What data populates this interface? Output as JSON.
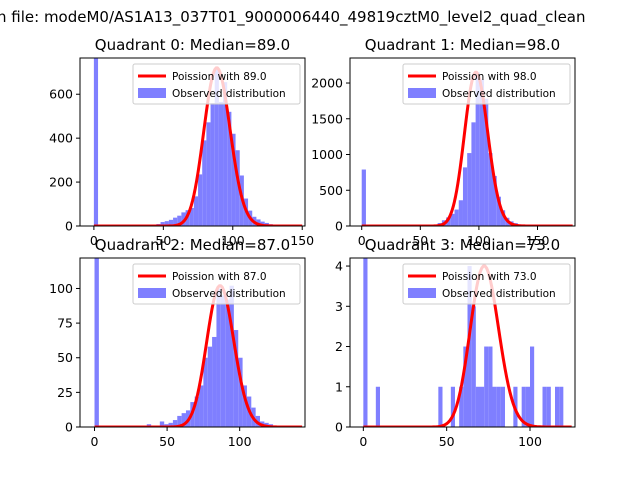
{
  "suptitle": "n file: modeM0/AS1A13_037T01_9000006440_49819cztM0_level2_quad_clean",
  "colors": {
    "bars": "#7f7fff",
    "curve": "#ff0000",
    "curve_halo": "#ff8080"
  },
  "chart_data": [
    {
      "type": "bar",
      "title": "Quadrant 0: Median=89.0",
      "median": 89.0,
      "legend": [
        "Poission with 89.0",
        "Observed distribution"
      ],
      "legend_placement": "top-right",
      "xlim": [
        -10,
        152
      ],
      "ylim": [
        0,
        765
      ],
      "xticks": [
        0,
        50,
        100,
        150
      ],
      "yticks": [
        0,
        200,
        400,
        600
      ],
      "bin_width": 3,
      "bins": [
        [
          0,
          768
        ],
        [
          39,
          3
        ],
        [
          42,
          5
        ],
        [
          45,
          9
        ],
        [
          48,
          18
        ],
        [
          51,
          22
        ],
        [
          54,
          28
        ],
        [
          57,
          38
        ],
        [
          60,
          47
        ],
        [
          63,
          62
        ],
        [
          66,
          72
        ],
        [
          69,
          82
        ],
        [
          72,
          135
        ],
        [
          75,
          235
        ],
        [
          78,
          390
        ],
        [
          81,
          472
        ],
        [
          84,
          560
        ],
        [
          87,
          720
        ],
        [
          90,
          565
        ],
        [
          93,
          655
        ],
        [
          96,
          520
        ],
        [
          99,
          420
        ],
        [
          102,
          345
        ],
        [
          105,
          230
        ],
        [
          108,
          125
        ],
        [
          111,
          70
        ],
        [
          114,
          42
        ],
        [
          117,
          30
        ],
        [
          120,
          20
        ],
        [
          123,
          14
        ],
        [
          126,
          8
        ],
        [
          129,
          5
        ],
        [
          132,
          3
        ],
        [
          135,
          2
        ],
        [
          138,
          1
        ]
      ]
    },
    {
      "type": "bar",
      "title": "Quadrant 1: Median=98.0",
      "median": 98.0,
      "legend": [
        "Poission with 98.0",
        "Observed distribution"
      ],
      "legend_placement": "top-right",
      "xlim": [
        -10,
        182
      ],
      "ylim": [
        0,
        2350
      ],
      "xticks": [
        0,
        50,
        100,
        150
      ],
      "yticks": [
        0,
        500,
        1000,
        1500,
        2000
      ],
      "bin_width": 3.6,
      "bins": [
        [
          0,
          790
        ],
        [
          54,
          5
        ],
        [
          57.6,
          10
        ],
        [
          61.2,
          18
        ],
        [
          64.8,
          42
        ],
        [
          68.4,
          80
        ],
        [
          72,
          120
        ],
        [
          75.6,
          170
        ],
        [
          79.2,
          230
        ],
        [
          82.8,
          360
        ],
        [
          86.4,
          820
        ],
        [
          90,
          1020
        ],
        [
          93.6,
          1450
        ],
        [
          97.2,
          2150
        ],
        [
          100.8,
          2050
        ],
        [
          104.4,
          1780
        ],
        [
          108,
          1020
        ],
        [
          111.6,
          700
        ],
        [
          115.2,
          410
        ],
        [
          118.8,
          220
        ],
        [
          122.4,
          115
        ],
        [
          126,
          65
        ],
        [
          129.6,
          40
        ],
        [
          133.2,
          22
        ],
        [
          136.8,
          12
        ],
        [
          140.4,
          6
        ],
        [
          144,
          3
        ]
      ]
    },
    {
      "type": "bar",
      "title": "Quadrant 2: Median=87.0",
      "median": 87.0,
      "legend": [
        "Poission with 87.0",
        "Observed distribution"
      ],
      "legend_placement": "top-right",
      "xlim": [
        -10,
        145
      ],
      "ylim": [
        0,
        122
      ],
      "xticks": [
        0,
        50,
        100
      ],
      "yticks": [
        0,
        25,
        50,
        75,
        100
      ],
      "bin_width": 3,
      "bins": [
        [
          0,
          122
        ],
        [
          18,
          1
        ],
        [
          24,
          1
        ],
        [
          30,
          1
        ],
        [
          36,
          2
        ],
        [
          39,
          1
        ],
        [
          45,
          4
        ],
        [
          48,
          2
        ],
        [
          51,
          3
        ],
        [
          54,
          5
        ],
        [
          57,
          8
        ],
        [
          60,
          10
        ],
        [
          63,
          12
        ],
        [
          66,
          18
        ],
        [
          69,
          22
        ],
        [
          72,
          30
        ],
        [
          75,
          50
        ],
        [
          78,
          58
        ],
        [
          81,
          65
        ],
        [
          84,
          100
        ],
        [
          87,
          95
        ],
        [
          90,
          92
        ],
        [
          93,
          102
        ],
        [
          96,
          70
        ],
        [
          99,
          50
        ],
        [
          102,
          30
        ],
        [
          105,
          22
        ],
        [
          108,
          14
        ],
        [
          111,
          8
        ],
        [
          114,
          4
        ],
        [
          117,
          3
        ],
        [
          120,
          2
        ],
        [
          126,
          1
        ],
        [
          132,
          1
        ]
      ]
    },
    {
      "type": "bar",
      "title": "Quadrant 3: Median=73.0",
      "median": 73.0,
      "legend": [
        "Poission with 73.0",
        "Observed distribution"
      ],
      "legend_placement": "top-right",
      "xlim": [
        -8,
        127
      ],
      "ylim": [
        0,
        4.2
      ],
      "xticks": [
        0,
        50,
        100
      ],
      "yticks": [
        0,
        1,
        2,
        3,
        4
      ],
      "bin_width": 2.5,
      "bins": [
        [
          0,
          4.2
        ],
        [
          7.5,
          1
        ],
        [
          45,
          1
        ],
        [
          52.5,
          1
        ],
        [
          57.5,
          1
        ],
        [
          60,
          2
        ],
        [
          62.5,
          4
        ],
        [
          65,
          3
        ],
        [
          67.5,
          1
        ],
        [
          70,
          1
        ],
        [
          72.5,
          2
        ],
        [
          75,
          2
        ],
        [
          77.5,
          1
        ],
        [
          80,
          1
        ],
        [
          82.5,
          1
        ],
        [
          90,
          1
        ],
        [
          95,
          1
        ],
        [
          97.5,
          1
        ],
        [
          100,
          2
        ],
        [
          107.5,
          1
        ],
        [
          110,
          1
        ],
        [
          115,
          1
        ],
        [
          117.5,
          1
        ]
      ]
    }
  ]
}
